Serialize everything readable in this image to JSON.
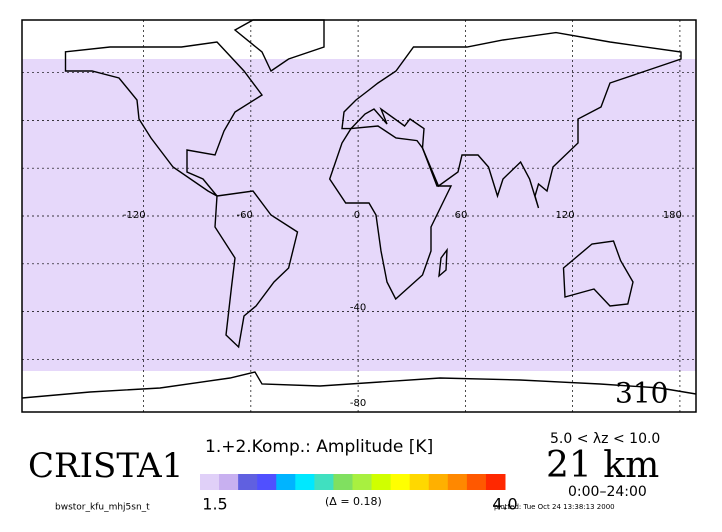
{
  "map": {
    "lon_lim": [
      -188,
      189
    ],
    "lat_lim": [
      82,
      -82
    ],
    "lon_ticks": [
      -120,
      -60,
      0,
      60,
      120,
      180
    ],
    "lat_gridlines": [
      60,
      40,
      20,
      0,
      -20,
      -40,
      -60
    ],
    "lat_labels": [
      -40,
      -80
    ],
    "orbit": "310"
  },
  "legend": {
    "title": "1.+2.Komp.:  Amplitude [K]",
    "min_label": "1.5",
    "max_label": "4.0",
    "step_label": "(Δ = 0.18)",
    "colors": [
      "#e0d0f8",
      "#c8b0f0",
      "#6060e0",
      "#5050ff",
      "#00b4ff",
      "#00e8ff",
      "#40e0c0",
      "#80e060",
      "#a8f040",
      "#d0ff00",
      "#ffff00",
      "#ffd800",
      "#ffb000",
      "#ff8800",
      "#ff5800",
      "#ff2800"
    ]
  },
  "header": {
    "instrument": "CRISTA1",
    "wavelength_range": "5.0 < λz < 10.0",
    "altitude": "21 km",
    "time_range": "0:00–24:00",
    "file": "bwstor_kfu_mhj5sn_t",
    "plotted": "plotted: Tue Oct 24 13:38:13 2000"
  }
}
